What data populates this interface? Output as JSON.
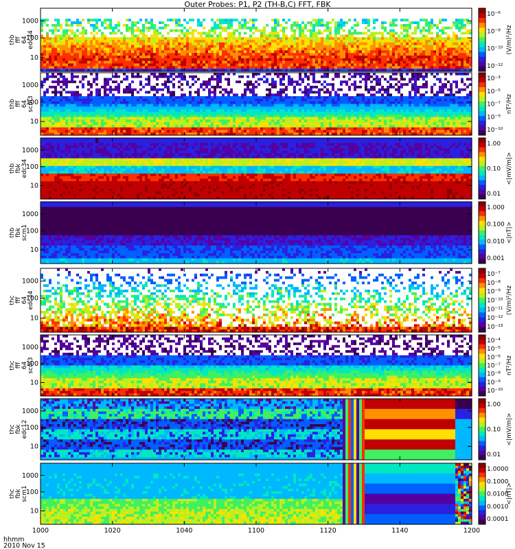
{
  "title": "Outer Probes: P1, P2 (TH-B,C) FFT, FBK",
  "footer": {
    "line1": "hhmm",
    "line2": "2010 Nov 15"
  },
  "colors": {
    "colormap": [
      "#3a0050",
      "#5500a0",
      "#2a20e0",
      "#0060ff",
      "#00b8ff",
      "#00e8c0",
      "#40f060",
      "#b8f020",
      "#ffe000",
      "#ff9000",
      "#ff3000",
      "#c00000",
      "#8a0000"
    ],
    "background": "#ffffff",
    "axes": "#000000"
  },
  "chart_data": [
    {
      "id": "p1",
      "type": "heatmap",
      "ylabel": [
        "thb",
        "fff",
        "64",
        "edc34"
      ],
      "cb_unit": "(V/m)²/Hz",
      "yticks": [
        "1000",
        "100",
        "10"
      ],
      "cbticks": [
        "10⁻⁶",
        "10⁻⁸",
        "10⁻¹⁰",
        "10⁻¹²"
      ],
      "xrange": [
        "1000",
        "1200"
      ],
      "pattern": "fft_e"
    },
    {
      "id": "p2",
      "type": "heatmap",
      "ylabel": [
        "thb",
        "fff",
        "64",
        "scm3"
      ],
      "cb_unit": "nT²/Hz",
      "yticks": [
        "1000",
        "100",
        "10"
      ],
      "cbticks": [
        "10⁻³",
        "10⁻⁵",
        "10⁻⁷",
        "10⁻⁹",
        "10⁻¹⁰"
      ],
      "xrange": [
        "1000",
        "1200"
      ],
      "pattern": "fft_b"
    },
    {
      "id": "p3",
      "type": "heatmap",
      "ylabel": [
        "thb",
        "fbk",
        "edc34"
      ],
      "cb_unit": "<|mV/m|>",
      "yticks": [
        "1000",
        "100",
        "10"
      ],
      "cbticks": [
        "1.00",
        "0.10",
        "0.01"
      ],
      "xrange": [
        "1000",
        "1200"
      ],
      "pattern": "fbk_e_b"
    },
    {
      "id": "p4",
      "type": "heatmap",
      "ylabel": [
        "thb",
        "fbk",
        "scm1"
      ],
      "cb_unit": "<|nT|>",
      "yticks": [
        "1000",
        "100",
        "10"
      ],
      "cbticks": [
        "1.000",
        "0.100",
        "0.010",
        "0.001"
      ],
      "xrange": [
        "1000",
        "1200"
      ],
      "pattern": "fbk_b_b"
    },
    {
      "id": "p5",
      "type": "heatmap",
      "ylabel": [
        "thc",
        "fff",
        "64",
        "edc34"
      ],
      "cb_unit": "(V/m)²/Hz",
      "yticks": [
        "1000",
        "100",
        "10"
      ],
      "cbticks": [
        "10⁻⁷",
        "10⁻⁸",
        "10⁻⁹",
        "10⁻¹⁰",
        "10⁻¹¹",
        "10⁻¹²",
        "10⁻¹³"
      ],
      "xrange": [
        "1000",
        "1200"
      ],
      "pattern": "fft_e2"
    },
    {
      "id": "p6",
      "type": "heatmap",
      "ylabel": [
        "thc",
        "fff",
        "64",
        "scm3"
      ],
      "cb_unit": "nT²/Hz",
      "yticks": [
        "1000",
        "100",
        "10"
      ],
      "cbticks": [
        "10⁻⁴",
        "10⁻⁵",
        "10⁻⁶",
        "10⁻⁷",
        "10⁻⁸",
        "10⁻⁹",
        "10⁻¹⁰"
      ],
      "xrange": [
        "1000",
        "1200"
      ],
      "pattern": "fft_b2"
    },
    {
      "id": "p7",
      "type": "heatmap",
      "ylabel": [
        "thc",
        "fbk",
        "edc12"
      ],
      "cb_unit": "<|mV/m|>",
      "yticks": [
        "1000",
        "100",
        "10"
      ],
      "cbticks": [
        "1.00",
        "0.10",
        "0.01"
      ],
      "xrange": [
        "1000",
        "1200"
      ],
      "pattern": "fbk_e_c"
    },
    {
      "id": "p8",
      "type": "heatmap",
      "ylabel": [
        "thc",
        "fbk",
        "scm1"
      ],
      "cb_unit": "<|nT|>",
      "yticks": [
        "1000",
        "100",
        "10"
      ],
      "cbticks": [
        "1.0000",
        "0.1000",
        "0.0100",
        "0.0010",
        "0.0001"
      ],
      "xrange": [
        "1000",
        "1200"
      ],
      "pattern": "fbk_b_c"
    }
  ],
  "xaxis": {
    "ticks": [
      "1000",
      "1020",
      "1040",
      "1100",
      "1120",
      "1140",
      "1200"
    ]
  }
}
